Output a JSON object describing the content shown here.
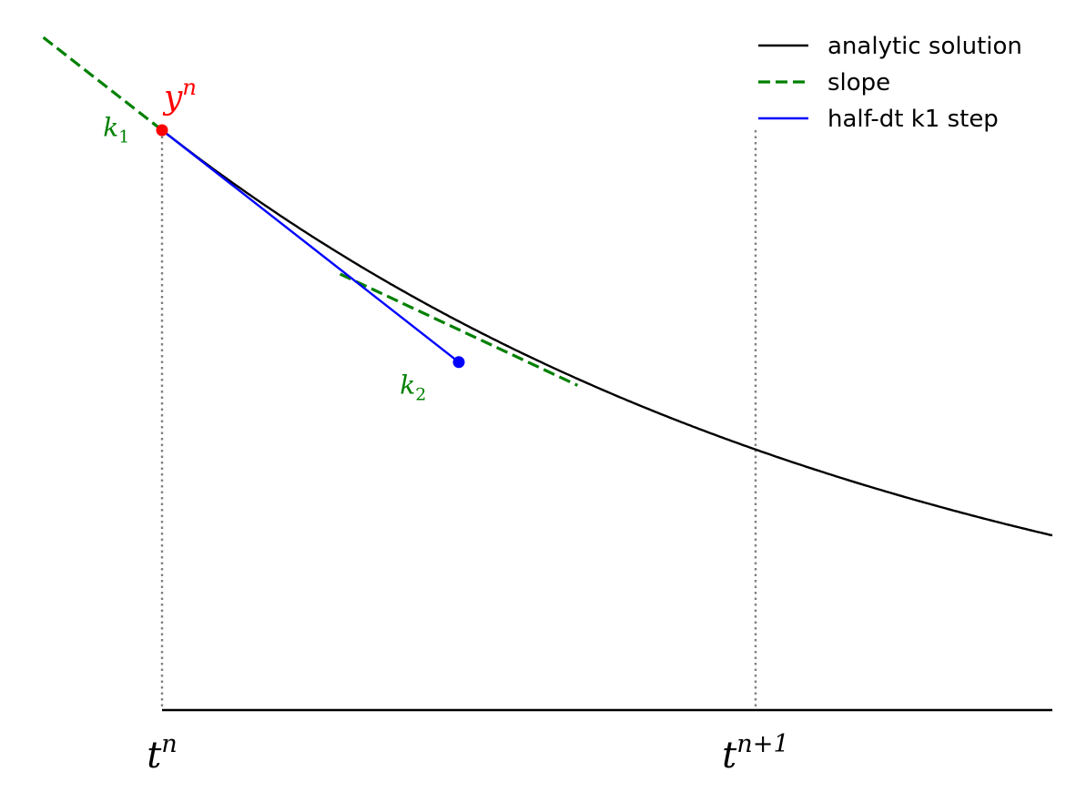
{
  "chart_data": {
    "type": "line",
    "title": "",
    "xlabel": "",
    "ylabel": "",
    "xlim": [
      -0.2,
      1.5
    ],
    "ylim": [
      0.0,
      1.05
    ],
    "grid": false,
    "legend_placement": "top-right",
    "series": [
      {
        "name": "analytic solution",
        "style": "solid",
        "color": "#000000",
        "function": "exp(-0.8*t)",
        "x": [
          0.0,
          0.1,
          0.2,
          0.3,
          0.4,
          0.5,
          0.6,
          0.7,
          0.8,
          0.9,
          1.0,
          1.1,
          1.2,
          1.3,
          1.4,
          1.5
        ],
        "y": [
          1.0,
          0.923,
          0.852,
          0.787,
          0.726,
          0.67,
          0.619,
          0.571,
          0.527,
          0.487,
          0.449,
          0.415,
          0.383,
          0.353,
          0.326,
          0.301
        ]
      },
      {
        "name": "slope",
        "style": "dashed",
        "color": "#008000",
        "segments": [
          {
            "x": [
              -0.2,
              0.0
            ],
            "y": [
              1.16,
              1.0
            ]
          },
          {
            "x": [
              0.3,
              0.7
            ],
            "y": [
              0.752,
              0.56
            ]
          }
        ]
      },
      {
        "name": "half-dt k1 step",
        "style": "solid",
        "color": "#0000ff",
        "x": [
          0.0,
          0.5
        ],
        "y": [
          1.0,
          0.6
        ]
      }
    ],
    "points": [
      {
        "x": 0.0,
        "y": 1.0,
        "color": "#ff0000"
      },
      {
        "x": 0.5,
        "y": 0.6,
        "color": "#0000ff"
      }
    ],
    "vlines": [
      0.0,
      1.0
    ],
    "ticks": [
      {
        "x": 0.0,
        "label_base": "t",
        "label_sup": "n"
      },
      {
        "x": 1.0,
        "label_base": "t",
        "label_sup": "n+1"
      }
    ],
    "annotations": [
      {
        "id": "yn",
        "base": "y",
        "sup": "n",
        "x": 0.0,
        "y": 1.0,
        "color": "#ff0000"
      },
      {
        "id": "k1",
        "base": "k",
        "sub": "1",
        "x": -0.08,
        "y": 0.99,
        "color": "#008000"
      },
      {
        "id": "k2",
        "base": "k",
        "sub": "2",
        "x": 0.42,
        "y": 0.58,
        "color": "#008000"
      }
    ]
  }
}
